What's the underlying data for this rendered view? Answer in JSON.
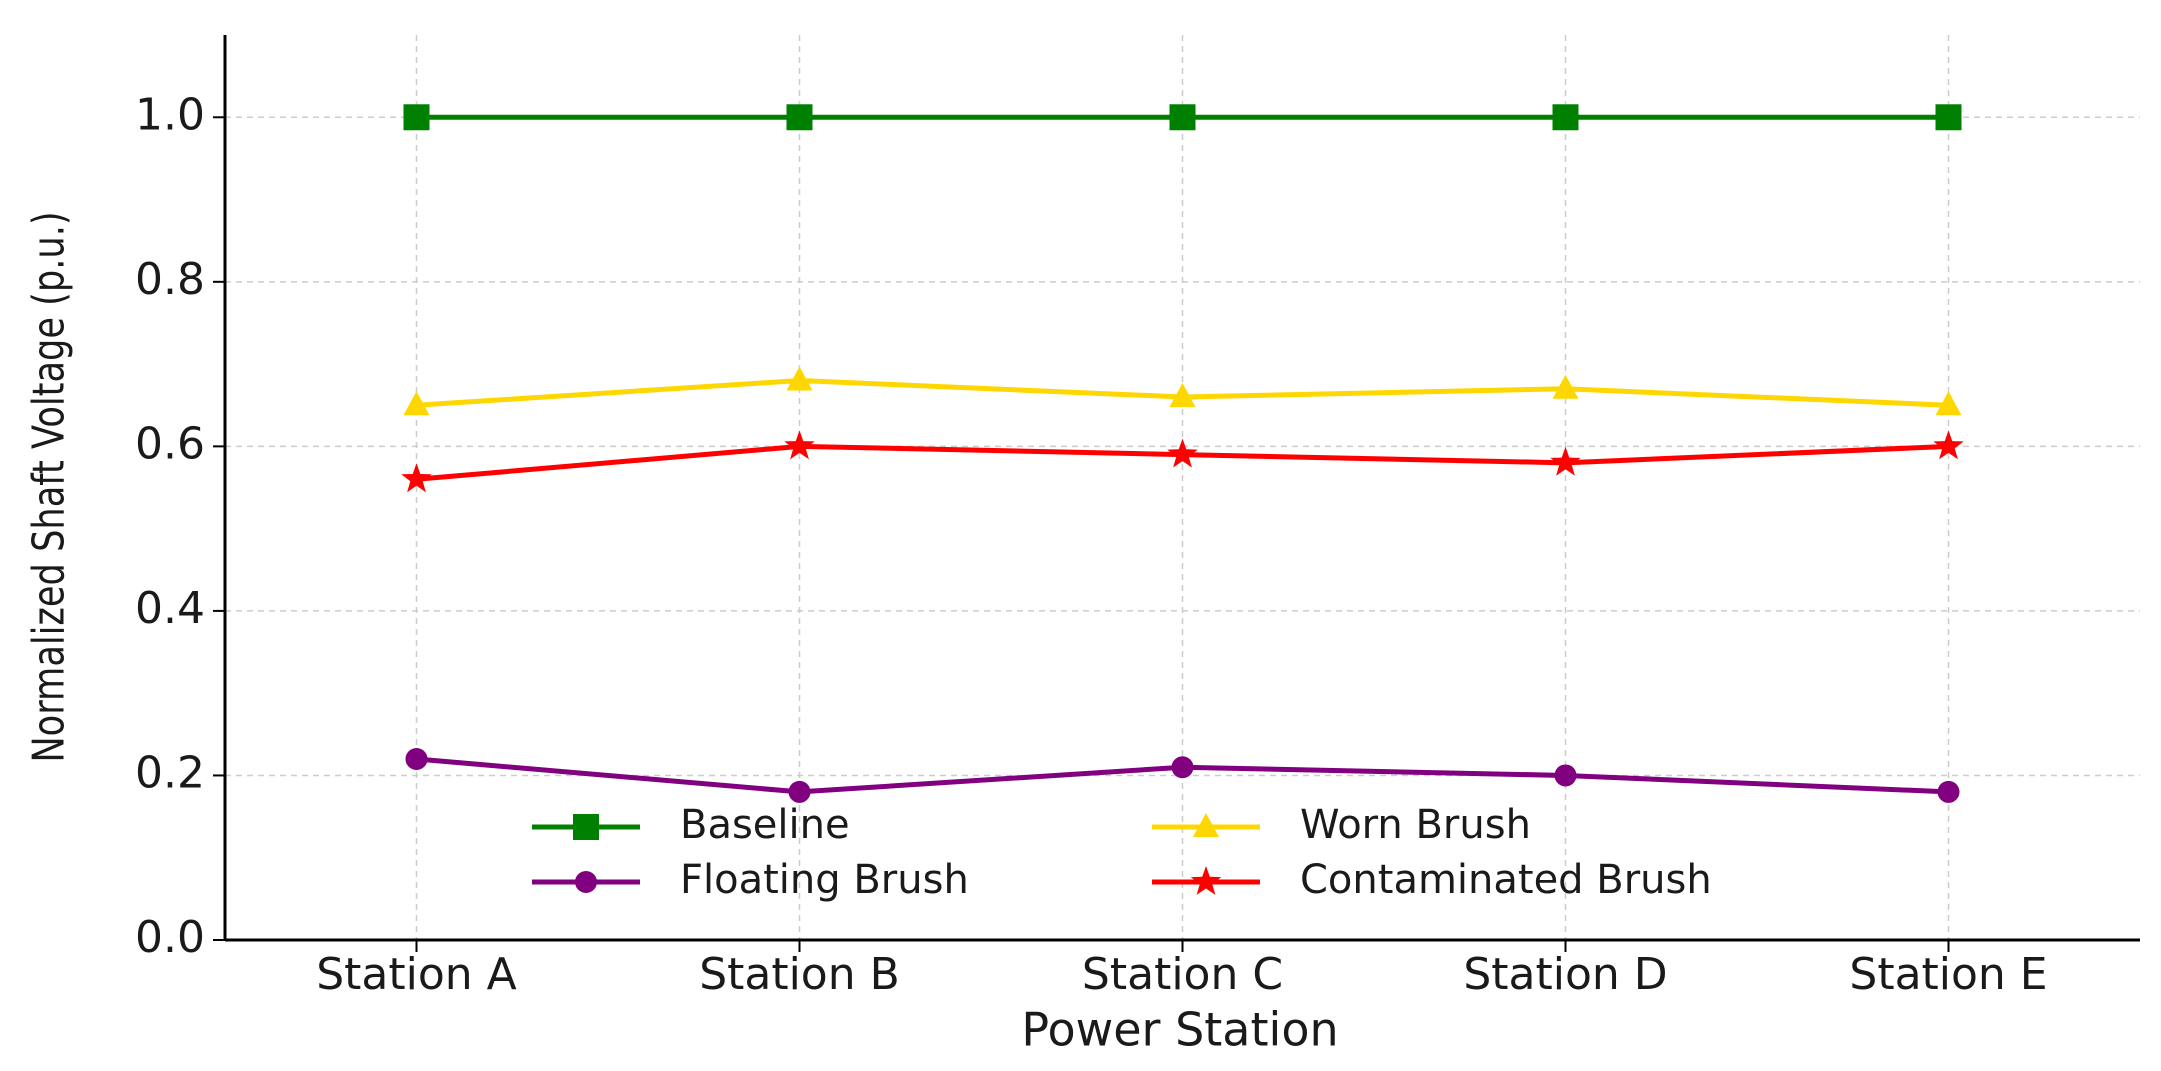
{
  "chart_data": {
    "type": "line",
    "xlabel": "Power Station",
    "ylabel": "Normalized Shaft Voltage (p.u.)",
    "categories": [
      "Station A",
      "Station B",
      "Station C",
      "Station D",
      "Station E"
    ],
    "series": [
      {
        "name": "Baseline",
        "color": "#008000",
        "marker": "square",
        "values": [
          1.0,
          1.0,
          1.0,
          1.0,
          1.0
        ]
      },
      {
        "name": "Floating Brush",
        "color": "#800080",
        "marker": "circle",
        "values": [
          0.22,
          0.18,
          0.21,
          0.2,
          0.18
        ]
      },
      {
        "name": "Worn Brush",
        "color": "#FFD700",
        "marker": "triangle",
        "values": [
          0.65,
          0.68,
          0.66,
          0.67,
          0.65
        ]
      },
      {
        "name": "Contaminated Brush",
        "color": "#FF0000",
        "marker": "star",
        "values": [
          0.56,
          0.6,
          0.59,
          0.58,
          0.6
        ]
      }
    ],
    "ylim": [
      0,
      1.1
    ],
    "yticks": [
      {
        "value": 0,
        "label": "0.0"
      },
      0.2,
      0.4,
      0.6,
      0.8,
      {
        "value": 1,
        "label": "1.0"
      }
    ],
    "grid": true,
    "legend": "lower center",
    "legend_columns": 2
  }
}
